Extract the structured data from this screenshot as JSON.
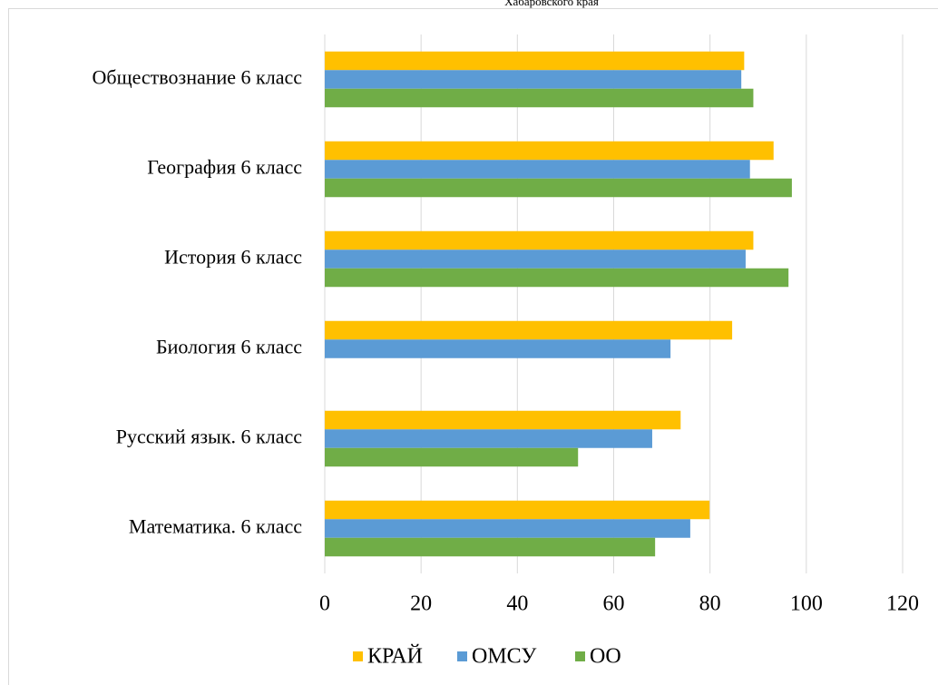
{
  "chart_data": {
    "type": "bar",
    "orientation": "horizontal",
    "title": "Хабаровского края",
    "categories": [
      "Математика. 6 класс",
      "Русский язык. 6 класс",
      "Биология 6 класс",
      "История 6 класс",
      "География 6 класс",
      "Обществознание 6 класс"
    ],
    "series": [
      {
        "name": "КРАЙ",
        "color": "#ffc000",
        "values": [
          79.9,
          73.9,
          84.6,
          89,
          93.2,
          87.1
        ]
      },
      {
        "name": "ОМСУ",
        "color": "#5b9bd5",
        "values": [
          75.9,
          68,
          71.8,
          87.4,
          88.3,
          86.5
        ]
      },
      {
        "name": "ОО",
        "color": "#70ad47",
        "values": [
          68.6,
          52.6,
          null,
          96.3,
          97,
          89
        ]
      }
    ],
    "xlim": [
      0,
      120
    ],
    "xticks": [
      0,
      20,
      40,
      60,
      80,
      100,
      120
    ],
    "grid": true,
    "legend": "bottom"
  }
}
